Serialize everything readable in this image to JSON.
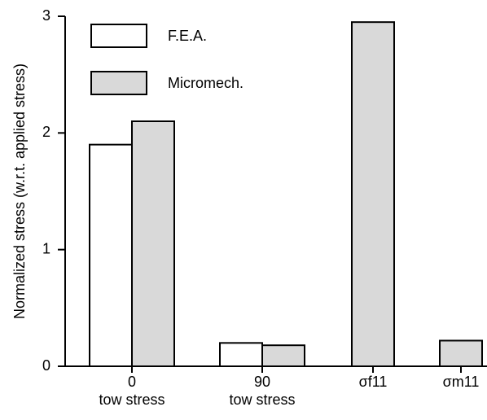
{
  "chart_data": {
    "type": "bar",
    "ylabel": "Normalized stress (w.r.t. applied stress)",
    "categories": [
      "0\ntow stress",
      "90\ntow stress",
      "σf11",
      "σm11"
    ],
    "series": [
      {
        "name": "F.E.A.",
        "color": "#ffffff",
        "values": [
          1.9,
          0.2,
          null,
          null
        ]
      },
      {
        "name": "Micromech.",
        "color": "#d9d9d9",
        "values": [
          2.1,
          0.18,
          2.95,
          0.22
        ]
      }
    ],
    "ylim": [
      0,
      3
    ],
    "yticks": [
      0,
      1,
      2,
      3
    ],
    "legend": "upper left",
    "grid": false
  }
}
